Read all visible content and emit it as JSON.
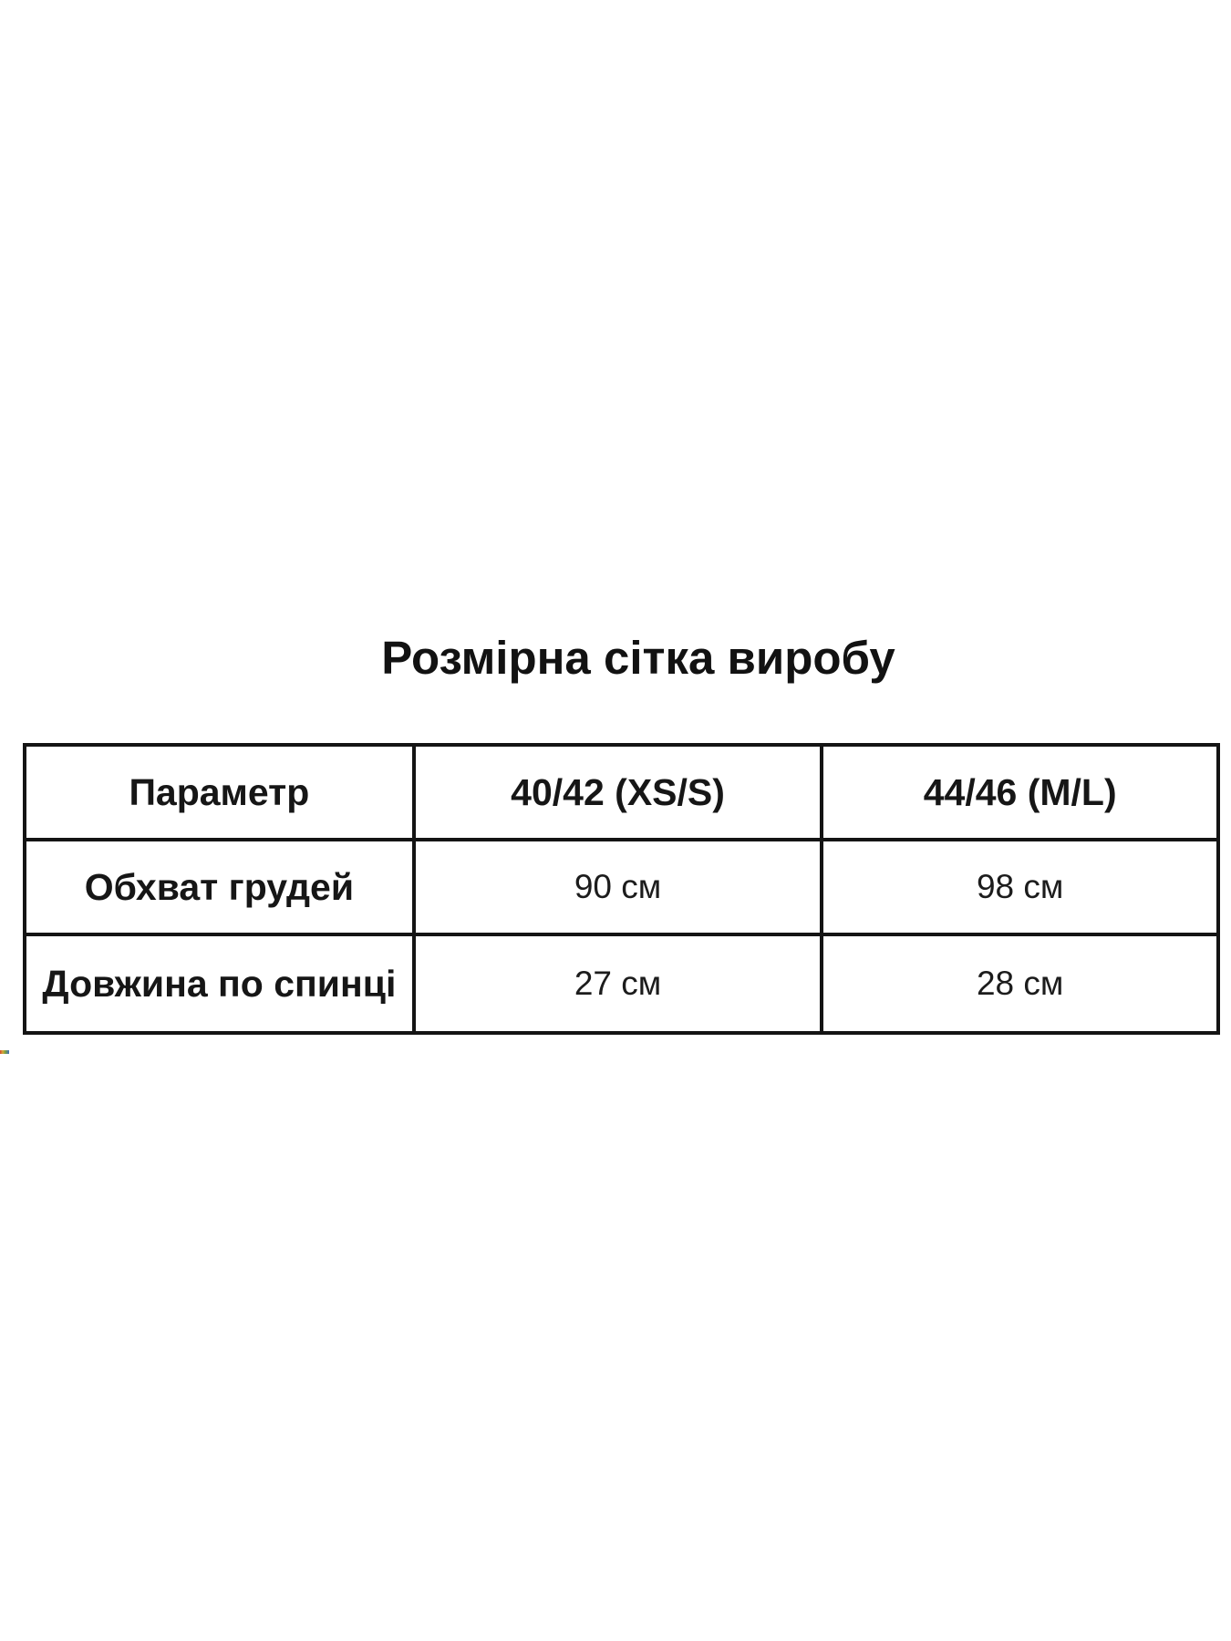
{
  "page": {
    "background": "#ffffff",
    "border_color": "#141414"
  },
  "title": "Розмірна сітка виробу",
  "size_table": {
    "columns": [
      "Параметр",
      "40/42 (XS/S)",
      "44/46 (M/L)"
    ],
    "rows": [
      {
        "parameter": "Обхват грудей",
        "values": [
          "90 см",
          "98 см"
        ]
      },
      {
        "parameter": "Довжина по спинці",
        "values": [
          "27 см",
          "28 см"
        ]
      }
    ]
  },
  "artifact": {
    "description": "tiny multicolor dash at left edge below table",
    "colors": [
      "#cf4a32",
      "#d7a83a",
      "#7fa43b",
      "#3f6fbf"
    ]
  }
}
